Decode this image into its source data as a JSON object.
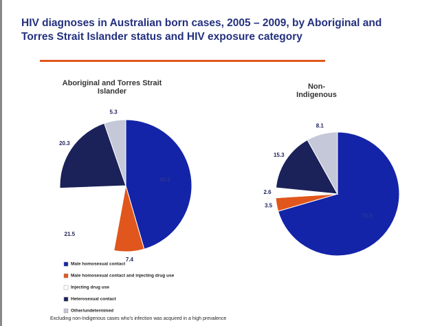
{
  "title": "HIV diagnoses in Australian born cases, 2005 – 2009, by Aboriginal and Torres Strait Islander status and HIV exposure category",
  "footnote": "Excluding non-Indigenous cases who's infection was acquired in a high prevalence",
  "legend": {
    "labels": [
      "Male homosexual contact",
      "Male homosexual contact and injecting drug use",
      "Injecting drug use",
      "Heterosexual contact",
      "Other/undetermined"
    ],
    "colors": [
      "#1424a8",
      "#e0561c",
      "#ffffff",
      "#1b2159",
      "#c4c8d8"
    ]
  },
  "chart_data": [
    {
      "type": "pie",
      "title": "Aboriginal and Torres Strait Islander",
      "values": [
        45.5,
        7.4,
        21.5,
        20.3,
        5.3
      ]
    },
    {
      "type": "pie",
      "title": "Non-Indigenous",
      "values": [
        70.5,
        3.5,
        2.6,
        15.3,
        8.1
      ]
    }
  ]
}
